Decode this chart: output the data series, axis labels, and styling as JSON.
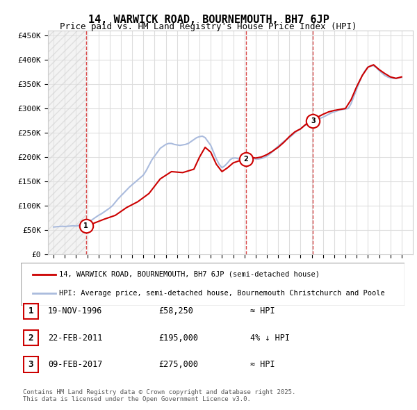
{
  "title": "14, WARWICK ROAD, BOURNEMOUTH, BH7 6JP",
  "subtitle": "Price paid vs. HM Land Registry's House Price Index (HPI)",
  "ylabel": "",
  "ylim": [
    0,
    460000
  ],
  "yticks": [
    0,
    50000,
    100000,
    150000,
    200000,
    250000,
    300000,
    350000,
    400000,
    450000
  ],
  "ytick_labels": [
    "£0",
    "£50K",
    "£100K",
    "£150K",
    "£200K",
    "£250K",
    "£300K",
    "£350K",
    "£400K",
    "£450K"
  ],
  "xlim_start": 1993.5,
  "xlim_end": 2026.0,
  "sales": [
    {
      "date": 1996.89,
      "price": 58250,
      "label": "1"
    },
    {
      "date": 2011.14,
      "price": 195000,
      "label": "2"
    },
    {
      "date": 2017.11,
      "price": 275000,
      "label": "3"
    }
  ],
  "sale_color": "#cc0000",
  "hpi_color": "#6699cc",
  "hpi_line_color": "#aabbdd",
  "grid_color": "#dddddd",
  "background_color": "#ffffff",
  "legend_entries": [
    "14, WARWICK ROAD, BOURNEMOUTH, BH7 6JP (semi-detached house)",
    "HPI: Average price, semi-detached house, Bournemouth Christchurch and Poole"
  ],
  "table_rows": [
    {
      "num": "1",
      "date": "19-NOV-1996",
      "price": "£58,250",
      "relation": "≈ HPI"
    },
    {
      "num": "2",
      "date": "22-FEB-2011",
      "price": "£195,000",
      "relation": "4% ↓ HPI"
    },
    {
      "num": "3",
      "date": "09-FEB-2017",
      "price": "£275,000",
      "relation": "≈ HPI"
    }
  ],
  "footer": "Contains HM Land Registry data © Crown copyright and database right 2025.\nThis data is licensed under the Open Government Licence v3.0.",
  "vline_dates": [
    1996.89,
    2011.14,
    2017.11
  ],
  "hpi_data_x": [
    1994.0,
    1994.25,
    1994.5,
    1994.75,
    1995.0,
    1995.25,
    1995.5,
    1995.75,
    1996.0,
    1996.25,
    1996.5,
    1996.75,
    1997.0,
    1997.25,
    1997.5,
    1997.75,
    1998.0,
    1998.25,
    1998.5,
    1998.75,
    1999.0,
    1999.25,
    1999.5,
    1999.75,
    2000.0,
    2000.25,
    2000.5,
    2000.75,
    2001.0,
    2001.25,
    2001.5,
    2001.75,
    2002.0,
    2002.25,
    2002.5,
    2002.75,
    2003.0,
    2003.25,
    2003.5,
    2003.75,
    2004.0,
    2004.25,
    2004.5,
    2004.75,
    2005.0,
    2005.25,
    2005.5,
    2005.75,
    2006.0,
    2006.25,
    2006.5,
    2006.75,
    2007.0,
    2007.25,
    2007.5,
    2007.75,
    2008.0,
    2008.25,
    2008.5,
    2008.75,
    2009.0,
    2009.25,
    2009.5,
    2009.75,
    2010.0,
    2010.25,
    2010.5,
    2010.75,
    2011.0,
    2011.25,
    2011.5,
    2011.75,
    2012.0,
    2012.25,
    2012.5,
    2012.75,
    2013.0,
    2013.25,
    2013.5,
    2013.75,
    2014.0,
    2014.25,
    2014.5,
    2014.75,
    2015.0,
    2015.25,
    2015.5,
    2015.75,
    2016.0,
    2016.25,
    2016.5,
    2016.75,
    2017.0,
    2017.25,
    2017.5,
    2017.75,
    2018.0,
    2018.25,
    2018.5,
    2018.75,
    2019.0,
    2019.25,
    2019.5,
    2019.75,
    2020.0,
    2020.25,
    2020.5,
    2020.75,
    2021.0,
    2021.25,
    2021.5,
    2021.75,
    2022.0,
    2022.25,
    2022.5,
    2022.75,
    2023.0,
    2023.25,
    2023.5,
    2023.75,
    2024.0,
    2024.25,
    2024.5,
    2024.75,
    2025.0
  ],
  "hpi_data_y": [
    56000,
    56500,
    57000,
    57500,
    57000,
    57500,
    58000,
    58500,
    58000,
    59000,
    60000,
    61000,
    65000,
    68000,
    72000,
    76000,
    80000,
    83000,
    87000,
    91000,
    95000,
    100000,
    107000,
    114000,
    120000,
    126000,
    132000,
    138000,
    143000,
    148000,
    153000,
    158000,
    163000,
    172000,
    183000,
    194000,
    202000,
    210000,
    218000,
    222000,
    226000,
    228000,
    228000,
    226000,
    225000,
    224000,
    225000,
    226000,
    228000,
    232000,
    236000,
    240000,
    242000,
    243000,
    240000,
    232000,
    224000,
    210000,
    196000,
    185000,
    178000,
    182000,
    188000,
    195000,
    198000,
    198000,
    196000,
    194000,
    194000,
    197000,
    199000,
    198000,
    196000,
    196000,
    197000,
    199000,
    202000,
    206000,
    211000,
    217000,
    222000,
    227000,
    232000,
    236000,
    240000,
    245000,
    250000,
    255000,
    258000,
    263000,
    267000,
    271000,
    274000,
    277000,
    279000,
    280000,
    282000,
    285000,
    288000,
    291000,
    293000,
    295000,
    297000,
    298000,
    299000,
    300000,
    310000,
    325000,
    340000,
    355000,
    368000,
    378000,
    385000,
    388000,
    388000,
    384000,
    378000,
    373000,
    368000,
    365000,
    363000,
    362000,
    362000,
    363000,
    364000
  ],
  "price_line_x": [
    1996.89,
    1997.5,
    1998.5,
    1999.5,
    2000.5,
    2001.5,
    2002.5,
    2003.5,
    2004.5,
    2005.5,
    2006.5,
    2007.0,
    2007.5,
    2008.0,
    2008.5,
    2009.0,
    2009.5,
    2010.0,
    2010.5,
    2011.14,
    2011.5,
    2012.0,
    2012.5,
    2013.0,
    2013.5,
    2014.0,
    2014.5,
    2015.0,
    2015.5,
    2016.0,
    2016.5,
    2017.11,
    2017.5,
    2018.0,
    2018.5,
    2019.0,
    2019.5,
    2020.0,
    2020.5,
    2021.0,
    2021.5,
    2022.0,
    2022.5,
    2023.0,
    2023.5,
    2024.0,
    2024.5,
    2025.0
  ],
  "price_line_y": [
    58250,
    63000,
    72000,
    80000,
    96000,
    108000,
    125000,
    155000,
    170000,
    168000,
    175000,
    200000,
    220000,
    210000,
    185000,
    170000,
    178000,
    188000,
    192000,
    195000,
    200000,
    198000,
    200000,
    205000,
    212000,
    220000,
    230000,
    242000,
    252000,
    258000,
    268000,
    275000,
    282000,
    288000,
    293000,
    296000,
    298000,
    300000,
    318000,
    345000,
    368000,
    385000,
    390000,
    380000,
    372000,
    365000,
    362000,
    365000
  ]
}
